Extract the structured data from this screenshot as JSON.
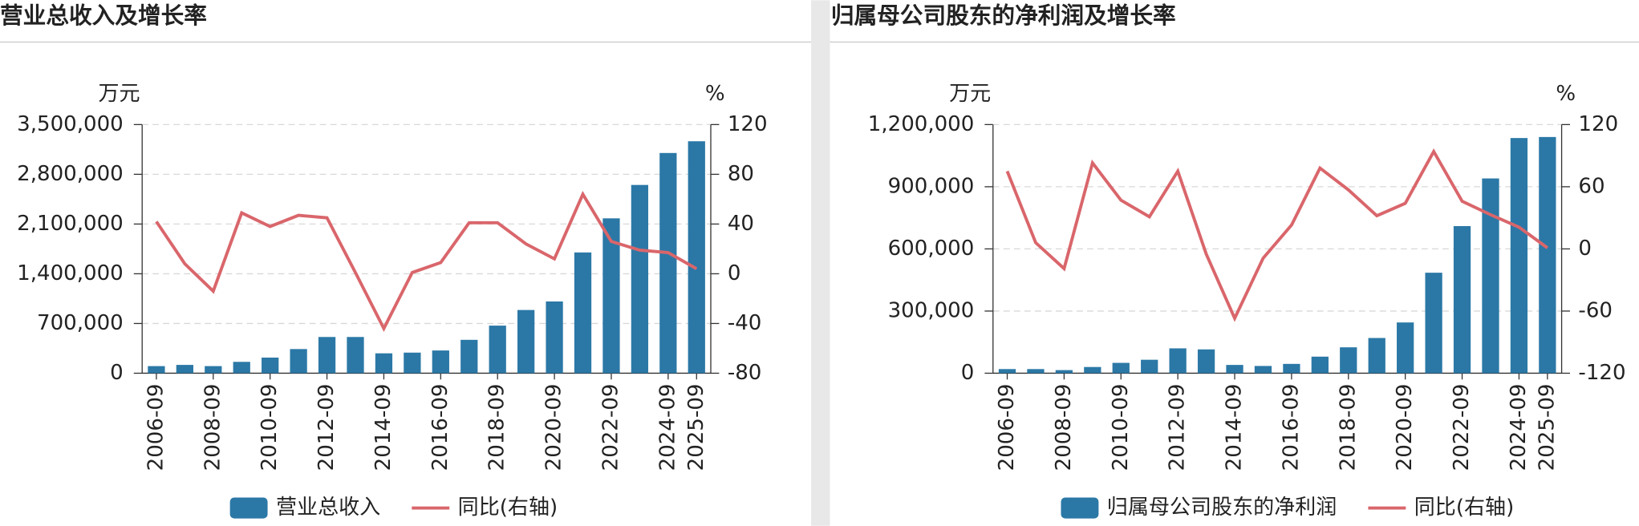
{
  "chart_data": [
    {
      "type": "bar",
      "title": "营业总收入及增长率",
      "y_unit": "万元",
      "y2_unit": "%",
      "categories": [
        "2006-09",
        null,
        "2008-09",
        null,
        "2010-09",
        null,
        "2012-09",
        null,
        "2014-09",
        null,
        "2016-09",
        null,
        "2018-09",
        null,
        "2020-09",
        null,
        "2022-09",
        null,
        "2024-09",
        "2025-09"
      ],
      "series": [
        {
          "name": "营业总收入",
          "type": "bar",
          "color": "#2b78a6",
          "values": [
            100000,
            117000,
            100000,
            160000,
            220000,
            340000,
            510000,
            510000,
            280000,
            290000,
            320000,
            470000,
            670000,
            890000,
            1010000,
            1700000,
            2180000,
            2650000,
            3100000,
            3265000
          ]
        },
        {
          "name": "同比(右轴)",
          "type": "line",
          "axis": "y2",
          "color": "#d9666b",
          "values": [
            42,
            8,
            -14,
            49,
            38,
            47,
            45,
            1,
            -44,
            1,
            9,
            41,
            41,
            24,
            12,
            64,
            26,
            19,
            17,
            4
          ]
        }
      ],
      "ylim": [
        0,
        3500000
      ],
      "yticks": [
        0,
        {
          "value": 700000,
          "label": "700,000"
        },
        {
          "value": 1400000,
          "label": "1,400,000"
        },
        {
          "value": 2100000,
          "label": "2,100,000"
        },
        {
          "value": 2800000,
          "label": "2,800,000"
        },
        {
          "value": 3500000,
          "label": "3,500,000"
        }
      ],
      "y2lim": [
        -80,
        120
      ],
      "y2ticks": [
        -80,
        -40,
        0,
        40,
        80,
        120
      ],
      "grid": true
    },
    {
      "type": "bar",
      "title": "归属母公司股东的净利润及增长率",
      "y_unit": "万元",
      "y2_unit": "%",
      "categories": [
        "2006-09",
        null,
        "2008-09",
        null,
        "2010-09",
        null,
        "2012-09",
        null,
        "2014-09",
        null,
        "2016-09",
        null,
        "2018-09",
        null,
        "2020-09",
        null,
        "2022-09",
        null,
        "2024-09",
        "2025-09"
      ],
      "series": [
        {
          "name": "归属母公司股东的净利润",
          "type": "bar",
          "color": "#2b78a6",
          "values": [
            20000,
            20000,
            15000,
            30000,
            50000,
            65000,
            120000,
            115000,
            40000,
            35000,
            45000,
            80000,
            125000,
            170000,
            245000,
            485000,
            710000,
            940000,
            1135000,
            1140000
          ]
        },
        {
          "name": "同比(右轴)",
          "type": "line",
          "axis": "y2",
          "color": "#d9666b",
          "values": [
            75,
            6,
            -19,
            83,
            47,
            31,
            75,
            -5,
            -67,
            -9,
            23,
            78,
            57,
            32,
            44,
            94,
            46,
            33,
            21,
            1
          ]
        }
      ],
      "ylim": [
        0,
        1200000
      ],
      "yticks": [
        0,
        {
          "value": 300000,
          "label": "300,000"
        },
        {
          "value": 600000,
          "label": "600,000"
        },
        {
          "value": 900000,
          "label": "900,000"
        },
        {
          "value": 1200000,
          "label": "1,200,000"
        }
      ],
      "y2lim": [
        -120,
        120
      ],
      "y2ticks": [
        -120,
        -60,
        0,
        60,
        120
      ],
      "grid": true
    }
  ]
}
